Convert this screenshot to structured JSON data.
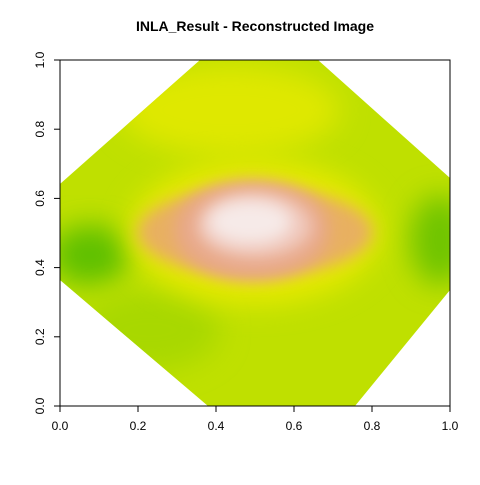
{
  "chart_data": {
    "type": "image",
    "title": "INLA_Result  - Reconstructed Image",
    "xlim": [
      0,
      1
    ],
    "ylim": [
      0,
      1
    ],
    "xticks": [
      {
        "value": 0,
        "label": "0.0"
      },
      {
        "value": 0.2,
        "label": "0.2"
      },
      {
        "value": 0.4,
        "label": "0.4"
      },
      {
        "value": 0.6,
        "label": "0.6"
      },
      {
        "value": 0.8,
        "label": "0.8"
      },
      {
        "value": 1,
        "label": "1.0"
      }
    ],
    "yticks": [
      {
        "value": 0,
        "label": "0.0"
      },
      {
        "value": 0.2,
        "label": "0.2"
      },
      {
        "value": 0.4,
        "label": "0.4"
      },
      {
        "value": 0.6,
        "label": "0.6"
      },
      {
        "value": 0.8,
        "label": "0.8"
      },
      {
        "value": 1,
        "label": "1.0"
      }
    ]
  }
}
